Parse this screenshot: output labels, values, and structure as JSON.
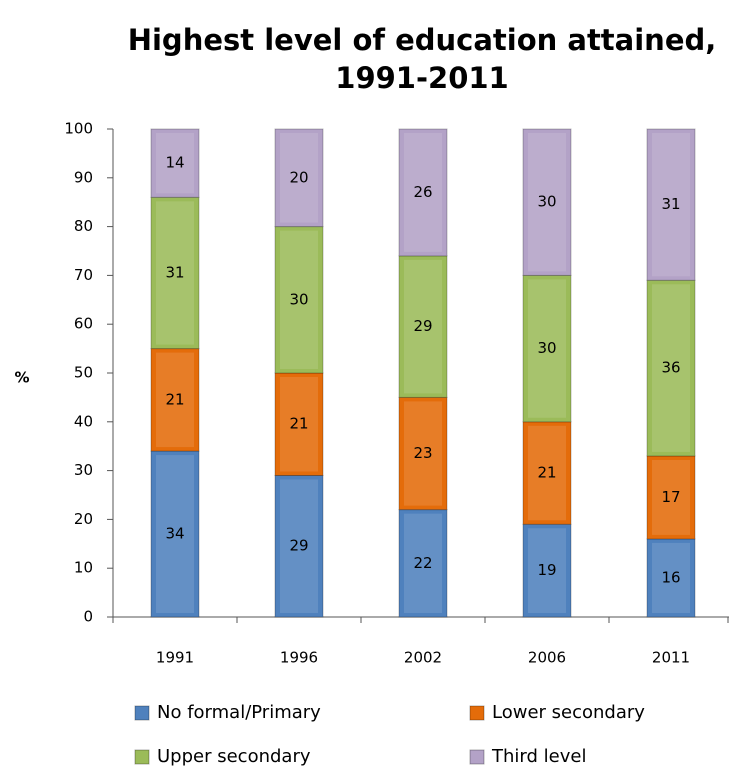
{
  "chart_data": {
    "type": "stacked_bar",
    "title": "Highest level of education attained,",
    "subtitle": "1991-2011",
    "y_label": "%",
    "categories": [
      "1991",
      "1996",
      "2002",
      "2006",
      "2011"
    ],
    "series": [
      {
        "name": "No formal/Primary",
        "color": "#4f81bd",
        "values": [
          34,
          29,
          22,
          19,
          16
        ]
      },
      {
        "name": "Lower secondary",
        "color": "#e46c0a",
        "values": [
          21,
          21,
          23,
          21,
          17
        ]
      },
      {
        "name": "Upper secondary",
        "color": "#9bbb59",
        "values": [
          31,
          30,
          29,
          30,
          36
        ]
      },
      {
        "name": "Third level",
        "color": "#b3a2c7",
        "values": [
          14,
          20,
          26,
          30,
          31
        ]
      }
    ],
    "ylim": [
      0,
      100
    ],
    "yticks": [
      0,
      10,
      20,
      30,
      40,
      50,
      60,
      70,
      80,
      90,
      100
    ],
    "grid": false,
    "legend": "bottom"
  }
}
